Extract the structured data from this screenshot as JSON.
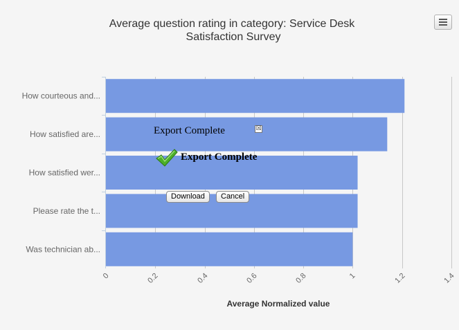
{
  "chart_data": {
    "type": "bar",
    "orientation": "horizontal",
    "title": "Average question rating in category: Service Desk Satisfaction Survey",
    "title_lines": [
      "Average question rating in category: Service Desk",
      "Satisfaction Survey"
    ],
    "categories": [
      "How courteous and...",
      "How satisfied are...",
      "How satisfied wer...",
      "Please rate the t...",
      "Was technician ab..."
    ],
    "values": [
      1.21,
      1.14,
      1.02,
      1.02,
      1.0
    ],
    "xlabel": "Average Normalized value",
    "xlim": [
      0,
      1.4
    ],
    "ticks": [
      "0",
      "0.2",
      "0.4",
      "0.6",
      "0.8",
      "1",
      "1.2",
      "1.4"
    ],
    "grid": true,
    "legend": "none",
    "bar_color": "#7799e2"
  },
  "menu": {
    "icon": "hamburger-menu-icon"
  },
  "export_popup": {
    "title": "Export Complete",
    "close_glyph": "☒",
    "message": "Export Complete",
    "check_icon": "check-icon",
    "download_label": "Download",
    "cancel_label": "Cancel"
  }
}
